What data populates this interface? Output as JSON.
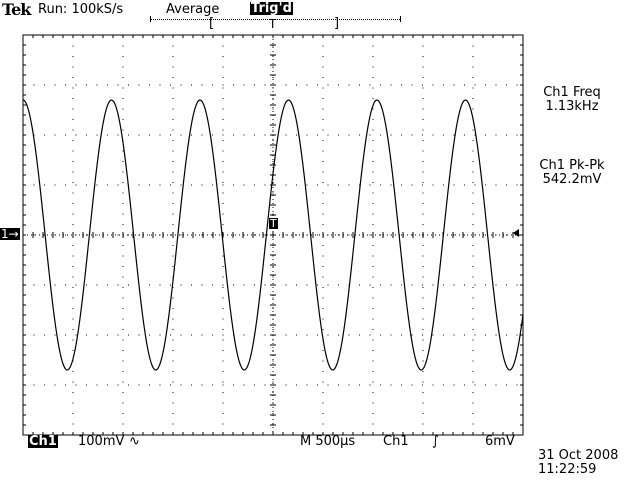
{
  "header": {
    "brand": "Tek",
    "run_status": "Run: 100kS/s",
    "acquire_mode": "Average",
    "trigger_status": "Trig'd"
  },
  "measurements": [
    {
      "label": "Ch1 Freq",
      "value": "1.13kHz"
    },
    {
      "label": "Ch1 Pk-Pk",
      "value": "542.2mV"
    }
  ],
  "footer": {
    "channel": "Ch1",
    "volts_per_div": "100mV",
    "coupling_symbol": "∿",
    "timebase": "M 500µs",
    "trigger_source": "Ch1",
    "trigger_slope_symbol": "∫",
    "trigger_level": "6mV",
    "date": "31 Oct 2008",
    "time": "11:22:59"
  },
  "markers": {
    "channel_ground": "1→",
    "trigger_position": "T",
    "trigger_bracket_left": "[",
    "trigger_bracket_right": "]"
  },
  "chart_data": {
    "type": "line",
    "grid": true,
    "divisions_x": 10,
    "divisions_y": 8,
    "series": [
      {
        "waveform": "sine",
        "frequency_hz": 1130,
        "amplitude_divs": 2.7,
        "time_per_div_s": 0.0005
      }
    ]
  }
}
